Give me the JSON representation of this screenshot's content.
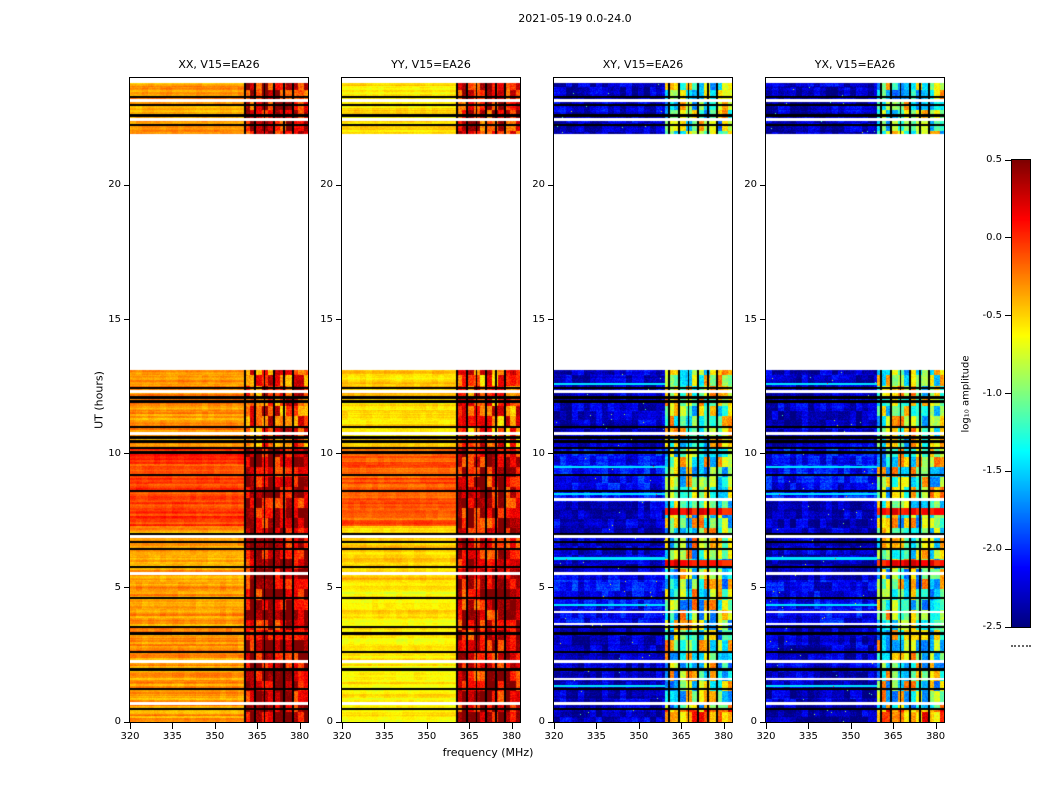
{
  "figure": {
    "title": "2021-05-19 0.0-24.0",
    "xlabel": "frequency (MHz)",
    "ylabel": "UT (hours)",
    "colorbar_label": "log₁₀ amplitude",
    "xticks": [
      "320",
      "335",
      "350",
      "365",
      "380"
    ],
    "yticks": [
      "0",
      "5",
      "10",
      "15",
      "20"
    ],
    "colorbar_ticks": [
      "0.5",
      "0.0",
      "-0.5",
      "-1.0",
      "-1.5",
      "-2.0",
      "-2.5"
    ]
  },
  "chart_data": {
    "type": "heatmap",
    "title": "2021-05-19 0.0-24.0",
    "xlabel": "frequency (MHz)",
    "ylabel": "UT (hours)",
    "x_range": [
      320,
      383
    ],
    "y_range": [
      0,
      24
    ],
    "xticks": [
      320,
      335,
      350,
      365,
      380
    ],
    "yticks": [
      0,
      5,
      10,
      15,
      20
    ],
    "grid": false,
    "colorbar": {
      "label": "log10 amplitude",
      "min": -2.5,
      "max": 0.5,
      "ticks": [
        0.5,
        0.0,
        -0.5,
        -1.0,
        -1.5,
        -2.0,
        -2.5
      ],
      "colormap": "jet",
      "position": "right"
    },
    "time_segments": [
      [
        0.0,
        13.1
      ],
      [
        21.9,
        23.8
      ]
    ],
    "data_gap": [
      13.1,
      21.9
    ],
    "flagged_times": [
      0.48,
      1.23,
      1.95,
      2.6,
      3.3,
      3.55,
      4.63,
      5.78,
      6.45,
      6.7,
      7.0,
      8.6,
      9.2,
      10.05,
      10.22,
      10.45,
      10.6,
      11.0,
      11.95,
      12.1,
      12.45,
      22.25,
      22.6,
      23.0,
      23.3
    ],
    "missing_times": [
      0.7,
      2.25,
      5.55,
      6.9,
      10.75,
      12.3,
      22.45,
      23.15
    ],
    "flagged_channels": [
      360.8,
      364.2,
      367.6,
      371.0,
      374.4,
      377.8
    ],
    "panels": [
      {
        "key": "xx",
        "title": "XX, V15=EA26",
        "seed": 1,
        "rfi_start": 361.2,
        "base_bands": [
          {
            "t": [
              0,
              7.3
            ],
            "level": -0.33
          },
          {
            "t": [
              7.3,
              10.2
            ],
            "level": -0.06
          },
          {
            "t": [
              10.2,
              13.1
            ],
            "level": -0.3
          },
          {
            "t": [
              21.9,
              23.8
            ],
            "level": -0.35
          }
        ],
        "row_stripe": 0.16,
        "pixel_noise": 0.05,
        "patch_mottle": 0.05,
        "rfi_bands": [
          {
            "t": [
              0,
              10.2
            ],
            "level": 0.28,
            "mottle": 0.45
          },
          {
            "t": [
              10.2,
              13.1
            ],
            "level": -0.05,
            "mottle": 0.5
          },
          {
            "t": [
              21.9,
              23.8
            ],
            "level": 0.2,
            "mottle": 0.45
          }
        ],
        "bright_rfi_rows": [],
        "light_rows": [],
        "extra_missing": [],
        "speckle": false
      },
      {
        "key": "yy",
        "title": "YY, V15=EA26",
        "seed": 2,
        "rfi_start": 361.2,
        "base_bands": [
          {
            "t": [
              0,
              5.2
            ],
            "level": -0.58
          },
          {
            "t": [
              5.2,
              7.3
            ],
            "level": -0.48
          },
          {
            "t": [
              7.3,
              10.2
            ],
            "level": -0.13
          },
          {
            "t": [
              10.2,
              13.1
            ],
            "level": -0.5
          },
          {
            "t": [
              21.9,
              23.8
            ],
            "level": -0.55
          }
        ],
        "row_stripe": 0.15,
        "pixel_noise": 0.05,
        "patch_mottle": 0.05,
        "rfi_bands": [
          {
            "t": [
              0,
              10.2
            ],
            "level": 0.22,
            "mottle": 0.45
          },
          {
            "t": [
              10.2,
              13.1
            ],
            "level": -0.12,
            "mottle": 0.5
          },
          {
            "t": [
              21.9,
              23.8
            ],
            "level": 0.12,
            "mottle": 0.45
          }
        ],
        "bright_rfi_rows": [],
        "light_rows": [],
        "extra_missing": [],
        "speckle": false
      },
      {
        "key": "xy",
        "title": "XY, V15=EA26",
        "seed": 3,
        "rfi_start": 359.2,
        "base_bands": [
          {
            "t": [
              0,
              3.7
            ],
            "level": -2.32
          },
          {
            "t": [
              3.7,
              5.3
            ],
            "level": -2.15
          },
          {
            "t": [
              5.3,
              8.2
            ],
            "level": -2.3
          },
          {
            "t": [
              8.2,
              10.2
            ],
            "level": -2.1
          },
          {
            "t": [
              10.2,
              13.1
            ],
            "level": -2.3
          },
          {
            "t": [
              21.9,
              23.8
            ],
            "level": -2.3
          }
        ],
        "row_stripe": 0.1,
        "pixel_noise": 0.13,
        "patch_mottle": 0.22,
        "rfi_bands": [
          {
            "t": [
              0,
              0.5
            ],
            "level": -0.2,
            "mottle": 0.45
          },
          {
            "t": [
              0.5,
              10.2
            ],
            "level": -1.0,
            "mottle": 0.85
          },
          {
            "t": [
              10.2,
              13.1
            ],
            "level": -0.95,
            "mottle": 0.8
          },
          {
            "t": [
              21.9,
              23.8
            ],
            "level": -1.05,
            "mottle": 0.8
          }
        ],
        "bright_rfi_rows": [
          [
            5.82,
            6.05
          ],
          [
            7.72,
            7.98
          ]
        ],
        "light_rows": [
          1.35,
          4.35,
          6.1,
          8.5,
          9.5,
          12.6
        ],
        "extra_missing": [
          1.6,
          3.65,
          4.1,
          8.3
        ],
        "speckle": true
      },
      {
        "key": "yx",
        "title": "YX, V15=EA26",
        "seed": 4,
        "rfi_start": 359.2,
        "base_bands": [
          {
            "t": [
              0,
              3.7
            ],
            "level": -2.32
          },
          {
            "t": [
              3.7,
              5.3
            ],
            "level": -2.15
          },
          {
            "t": [
              5.3,
              8.2
            ],
            "level": -2.3
          },
          {
            "t": [
              8.2,
              10.2
            ],
            "level": -2.1
          },
          {
            "t": [
              10.2,
              13.1
            ],
            "level": -2.3
          },
          {
            "t": [
              21.9,
              23.8
            ],
            "level": -2.3
          }
        ],
        "row_stripe": 0.1,
        "pixel_noise": 0.13,
        "patch_mottle": 0.22,
        "rfi_bands": [
          {
            "t": [
              0,
              0.5
            ],
            "level": -0.2,
            "mottle": 0.45
          },
          {
            "t": [
              0.5,
              10.2
            ],
            "level": -1.0,
            "mottle": 0.85
          },
          {
            "t": [
              10.2,
              13.1
            ],
            "level": -0.95,
            "mottle": 0.8
          },
          {
            "t": [
              21.9,
              23.8
            ],
            "level": -1.05,
            "mottle": 0.8
          }
        ],
        "bright_rfi_rows": [
          [
            5.82,
            6.05
          ],
          [
            7.72,
            7.98
          ]
        ],
        "light_rows": [
          1.35,
          4.35,
          6.1,
          8.5,
          9.5,
          12.6
        ],
        "extra_missing": [
          1.6,
          3.65,
          4.1,
          8.3
        ],
        "speckle": true
      }
    ]
  }
}
